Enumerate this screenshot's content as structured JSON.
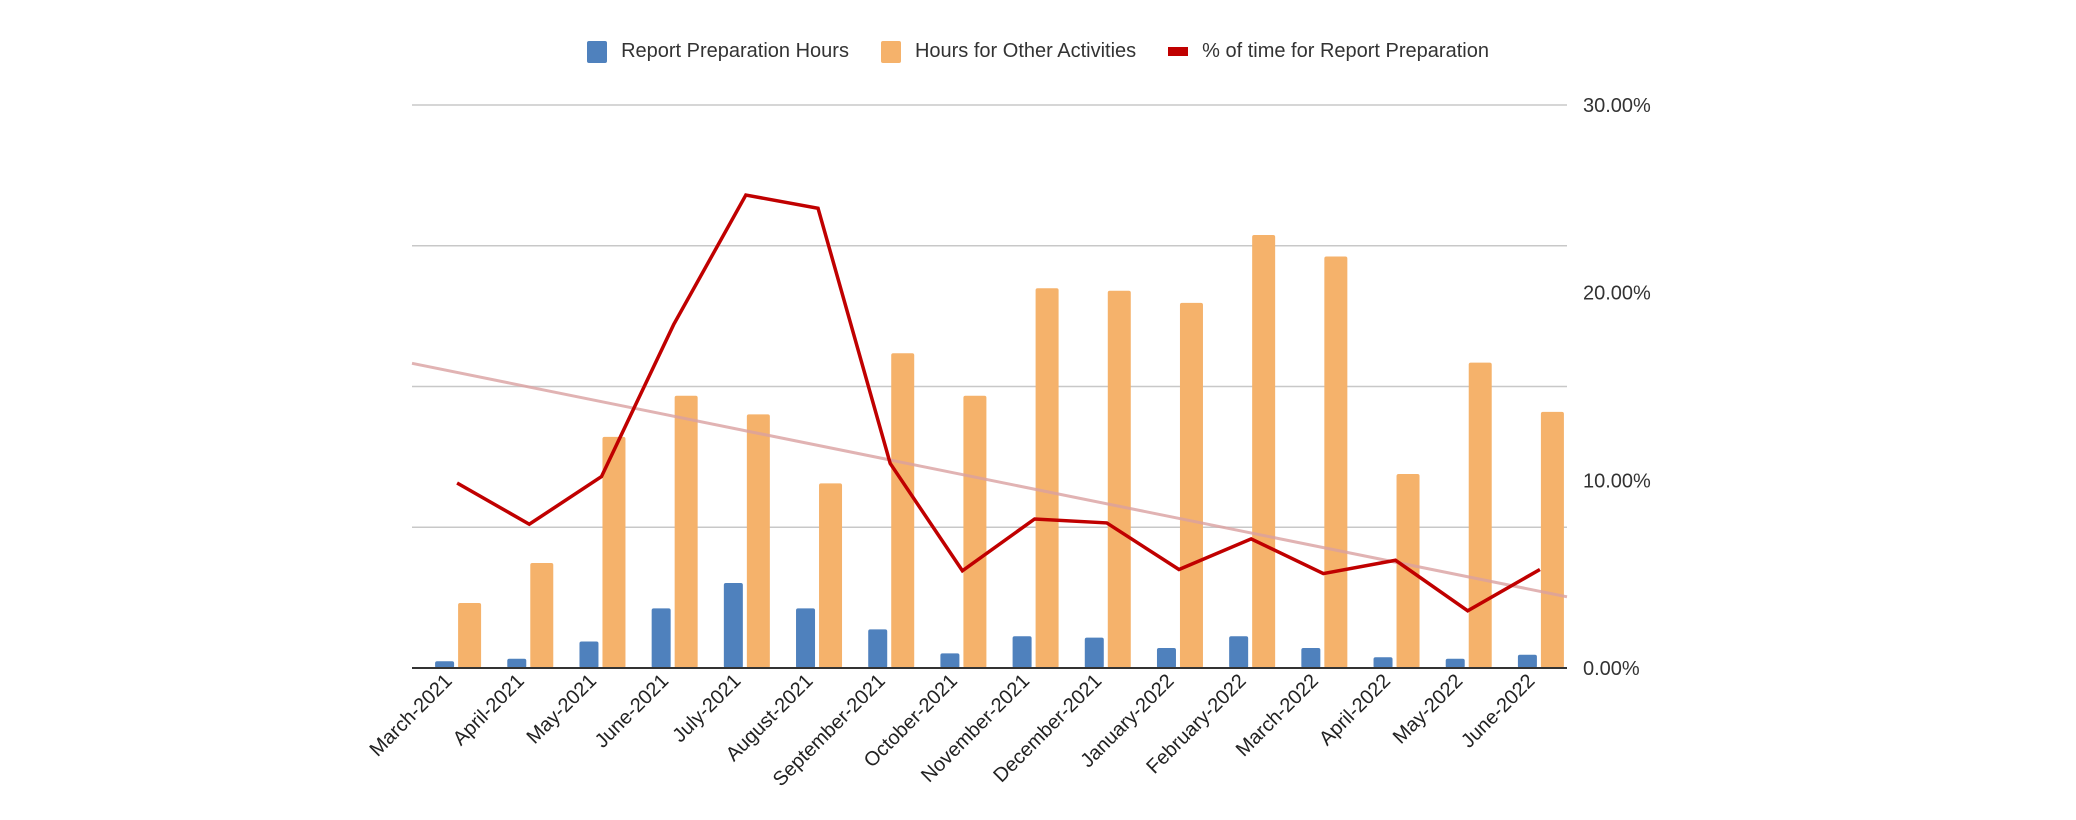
{
  "chart_data": {
    "type": "bar+line",
    "title": "",
    "categories": [
      "March-2021",
      "April-2021",
      "May-2021",
      "June-2021",
      "July-2021",
      "August-2021",
      "September-2021",
      "October-2021",
      "November-2021",
      "December-2021",
      "January-2022",
      "February-2022",
      "March-2022",
      "April-2022",
      "May-2022",
      "June-2022"
    ],
    "series": [
      {
        "name": "Report Preparation Hours",
        "type": "bar",
        "axis": "left",
        "color": "#4f81bd",
        "values": [
          2.4,
          3.3,
          9.4,
          21.2,
          30.2,
          21.2,
          13.7,
          5.2,
          11.3,
          10.8,
          7.1,
          11.3,
          7.1,
          3.8,
          3.3,
          4.7
        ]
      },
      {
        "name": "Hours for Other Activities",
        "type": "bar",
        "axis": "left",
        "color": "#f5b26b",
        "values": [
          23.1,
          37.3,
          82.1,
          96.7,
          90.1,
          65.6,
          111.8,
          96.7,
          134.9,
          134.0,
          129.7,
          153.8,
          146.2,
          68.9,
          108.5,
          91.0
        ]
      },
      {
        "name": "% of time for Report Preparation",
        "type": "line",
        "axis": "right",
        "color": "#c00000",
        "values": [
          9.86,
          7.66,
          10.2,
          18.3,
          25.2,
          24.5,
          10.9,
          5.18,
          7.94,
          7.73,
          5.25,
          6.88,
          5.03,
          5.74,
          3.05,
          5.25
        ]
      }
    ],
    "trendline": {
      "series": "% of time for Report Preparation",
      "type": "linear",
      "color": "#d9a0a0"
    },
    "left_axis": {
      "range": [
        0,
        200
      ],
      "step": 50,
      "labels_visible": false
    },
    "right_axis": {
      "range": [
        0,
        30
      ],
      "tick_labels": [
        "0.00%",
        "10.00%",
        "20.00%",
        "30.00%"
      ],
      "ticks": [
        0,
        10,
        20,
        30
      ]
    },
    "grid": true,
    "legend": "top-center",
    "xlabel": "",
    "ylabel": ""
  }
}
